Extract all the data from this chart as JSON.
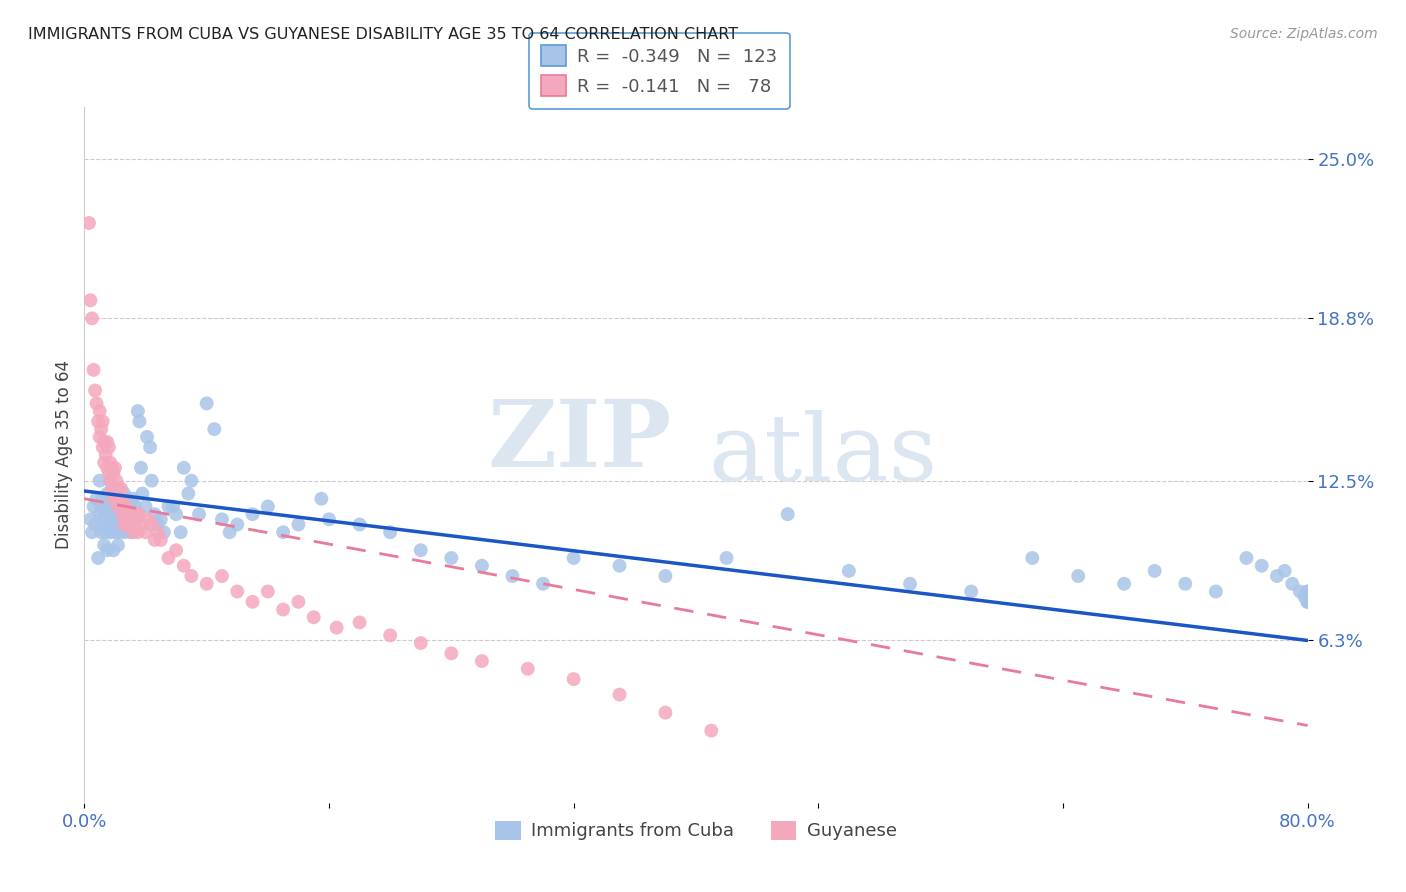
{
  "title": "IMMIGRANTS FROM CUBA VS GUYANESE DISABILITY AGE 35 TO 64 CORRELATION CHART",
  "source": "Source: ZipAtlas.com",
  "ylabel": "Disability Age 35 to 64",
  "xlim": [
    0.0,
    0.8
  ],
  "ylim": [
    0.0,
    0.27
  ],
  "yticks": [
    0.063,
    0.125,
    0.188,
    0.25
  ],
  "ytick_labels": [
    "6.3%",
    "12.5%",
    "18.8%",
    "25.0%"
  ],
  "xticks": [
    0.0,
    0.16,
    0.32,
    0.48,
    0.64,
    0.8
  ],
  "xtick_labels": [
    "0.0%",
    "",
    "",
    "",
    "",
    "80.0%"
  ],
  "cuba_R": "-0.349",
  "cuba_N": "123",
  "guyanese_R": "-0.141",
  "guyanese_N": "78",
  "cuba_color": "#a8c4e8",
  "guyanese_color": "#f4a8bc",
  "cuba_line_color": "#1a56c4",
  "guyanese_line_color": "#e87a9a",
  "watermark_zip": "ZIP",
  "watermark_atlas": "atlas",
  "background_color": "#ffffff",
  "grid_color": "#cccccc",
  "cuba_line_start_y": 0.121,
  "cuba_line_end_y": 0.063,
  "guy_line_start_y": 0.118,
  "guy_line_end_y": 0.03,
  "cuba_scatter_x": [
    0.004,
    0.005,
    0.006,
    0.007,
    0.008,
    0.009,
    0.01,
    0.01,
    0.011,
    0.011,
    0.012,
    0.012,
    0.013,
    0.013,
    0.014,
    0.014,
    0.015,
    0.015,
    0.015,
    0.016,
    0.016,
    0.017,
    0.017,
    0.018,
    0.018,
    0.019,
    0.019,
    0.02,
    0.02,
    0.021,
    0.021,
    0.022,
    0.022,
    0.023,
    0.023,
    0.024,
    0.025,
    0.025,
    0.026,
    0.026,
    0.027,
    0.027,
    0.028,
    0.029,
    0.03,
    0.03,
    0.031,
    0.032,
    0.033,
    0.034,
    0.035,
    0.036,
    0.037,
    0.038,
    0.04,
    0.041,
    0.043,
    0.044,
    0.046,
    0.048,
    0.05,
    0.052,
    0.055,
    0.058,
    0.06,
    0.063,
    0.065,
    0.068,
    0.07,
    0.075,
    0.08,
    0.085,
    0.09,
    0.095,
    0.1,
    0.11,
    0.12,
    0.13,
    0.14,
    0.155,
    0.16,
    0.18,
    0.2,
    0.22,
    0.24,
    0.26,
    0.28,
    0.3,
    0.32,
    0.35,
    0.38,
    0.42,
    0.46,
    0.5,
    0.54,
    0.58,
    0.62,
    0.65,
    0.68,
    0.7,
    0.72,
    0.74,
    0.76,
    0.77,
    0.78,
    0.785,
    0.79,
    0.795,
    0.798,
    0.8,
    0.8,
    0.8,
    0.8,
    0.8,
    0.8,
    0.8,
    0.8,
    0.8,
    0.8,
    0.8,
    0.8,
    0.8,
    0.8
  ],
  "cuba_scatter_y": [
    0.11,
    0.105,
    0.115,
    0.108,
    0.118,
    0.095,
    0.112,
    0.125,
    0.105,
    0.115,
    0.108,
    0.118,
    0.1,
    0.112,
    0.115,
    0.105,
    0.11,
    0.098,
    0.12,
    0.108,
    0.115,
    0.125,
    0.105,
    0.112,
    0.118,
    0.098,
    0.11,
    0.115,
    0.105,
    0.112,
    0.108,
    0.118,
    0.1,
    0.115,
    0.105,
    0.11,
    0.115,
    0.108,
    0.12,
    0.105,
    0.115,
    0.108,
    0.118,
    0.11,
    0.115,
    0.105,
    0.108,
    0.118,
    0.115,
    0.11,
    0.152,
    0.148,
    0.13,
    0.12,
    0.115,
    0.142,
    0.138,
    0.125,
    0.112,
    0.108,
    0.11,
    0.105,
    0.115,
    0.115,
    0.112,
    0.105,
    0.13,
    0.12,
    0.125,
    0.112,
    0.155,
    0.145,
    0.11,
    0.105,
    0.108,
    0.112,
    0.115,
    0.105,
    0.108,
    0.118,
    0.11,
    0.108,
    0.105,
    0.098,
    0.095,
    0.092,
    0.088,
    0.085,
    0.095,
    0.092,
    0.088,
    0.095,
    0.112,
    0.09,
    0.085,
    0.082,
    0.095,
    0.088,
    0.085,
    0.09,
    0.085,
    0.082,
    0.095,
    0.092,
    0.088,
    0.09,
    0.085,
    0.082,
    0.08,
    0.08,
    0.08,
    0.078,
    0.082,
    0.08,
    0.078,
    0.082,
    0.08,
    0.078,
    0.08,
    0.08,
    0.08,
    0.08,
    0.08
  ],
  "guyanese_scatter_x": [
    0.003,
    0.004,
    0.005,
    0.006,
    0.007,
    0.008,
    0.009,
    0.01,
    0.01,
    0.011,
    0.012,
    0.012,
    0.013,
    0.013,
    0.014,
    0.015,
    0.015,
    0.016,
    0.016,
    0.017,
    0.017,
    0.018,
    0.018,
    0.019,
    0.019,
    0.02,
    0.02,
    0.021,
    0.021,
    0.022,
    0.022,
    0.023,
    0.024,
    0.024,
    0.025,
    0.025,
    0.026,
    0.027,
    0.027,
    0.028,
    0.029,
    0.03,
    0.031,
    0.032,
    0.033,
    0.034,
    0.035,
    0.036,
    0.038,
    0.04,
    0.042,
    0.044,
    0.046,
    0.048,
    0.05,
    0.055,
    0.06,
    0.065,
    0.07,
    0.08,
    0.09,
    0.1,
    0.11,
    0.12,
    0.13,
    0.14,
    0.15,
    0.165,
    0.18,
    0.2,
    0.22,
    0.24,
    0.26,
    0.29,
    0.32,
    0.35,
    0.38,
    0.41
  ],
  "guyanese_scatter_y": [
    0.225,
    0.195,
    0.188,
    0.168,
    0.16,
    0.155,
    0.148,
    0.152,
    0.142,
    0.145,
    0.138,
    0.148,
    0.132,
    0.14,
    0.135,
    0.13,
    0.14,
    0.128,
    0.138,
    0.125,
    0.132,
    0.122,
    0.13,
    0.118,
    0.128,
    0.122,
    0.13,
    0.118,
    0.125,
    0.115,
    0.122,
    0.118,
    0.115,
    0.122,
    0.112,
    0.118,
    0.108,
    0.115,
    0.112,
    0.108,
    0.112,
    0.108,
    0.112,
    0.105,
    0.108,
    0.112,
    0.105,
    0.112,
    0.108,
    0.105,
    0.11,
    0.108,
    0.102,
    0.105,
    0.102,
    0.095,
    0.098,
    0.092,
    0.088,
    0.085,
    0.088,
    0.082,
    0.078,
    0.082,
    0.075,
    0.078,
    0.072,
    0.068,
    0.07,
    0.065,
    0.062,
    0.058,
    0.055,
    0.052,
    0.048,
    0.042,
    0.035,
    0.028
  ]
}
